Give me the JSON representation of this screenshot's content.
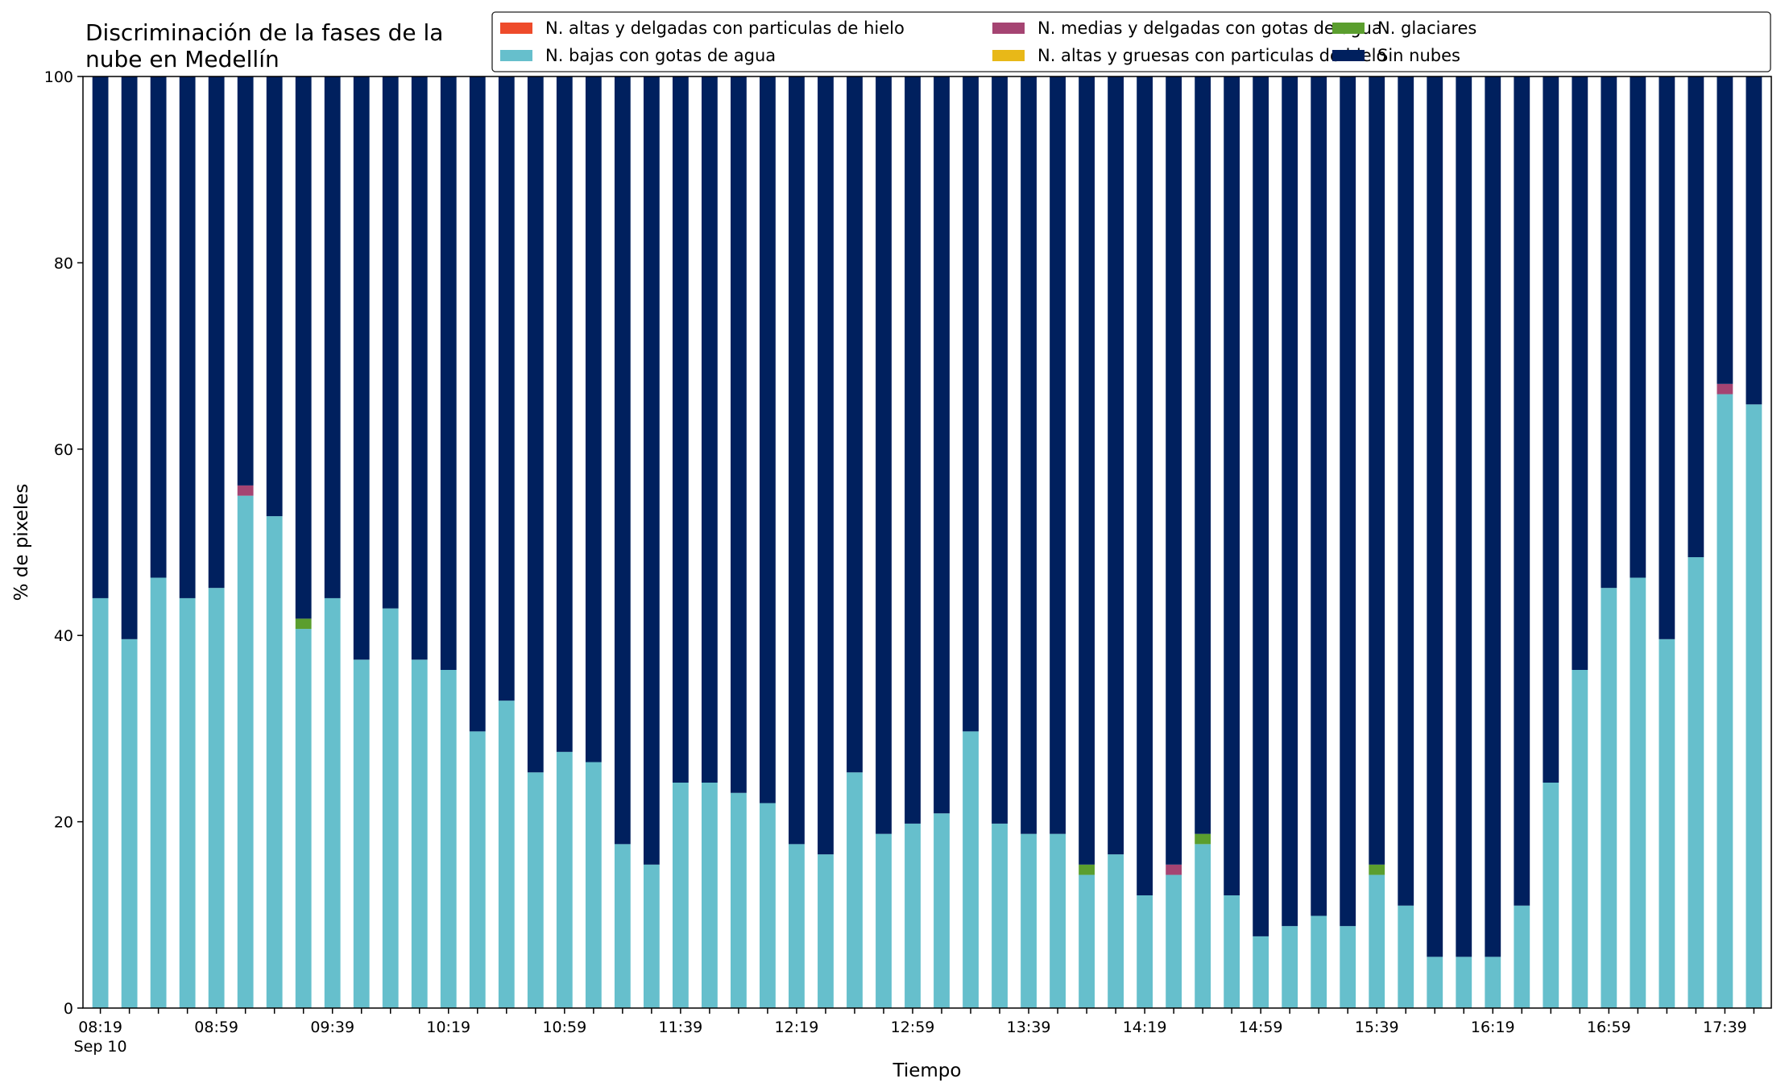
{
  "chart_data": {
    "type": "bar",
    "stacked": true,
    "title_lines": [
      "Discriminación de la fases de la",
      "nube en Medellín"
    ],
    "xlabel": "Tiempo",
    "ylabel": "% de pixeles",
    "ylim": [
      0,
      100
    ],
    "yticks": [
      0,
      20,
      40,
      60,
      80,
      100
    ],
    "grid": false,
    "legend_position": "top-right",
    "x_tick_labels": [
      {
        "index": 0,
        "label": "08:19",
        "sub": "Sep 10"
      },
      {
        "index": 4,
        "label": "08:59"
      },
      {
        "index": 8,
        "label": "09:39"
      },
      {
        "index": 12,
        "label": "10:19"
      },
      {
        "index": 16,
        "label": "10:59"
      },
      {
        "index": 20,
        "label": "11:39"
      },
      {
        "index": 24,
        "label": "12:19"
      },
      {
        "index": 28,
        "label": "12:59"
      },
      {
        "index": 32,
        "label": "13:39"
      },
      {
        "index": 36,
        "label": "14:19"
      },
      {
        "index": 40,
        "label": "14:59"
      },
      {
        "index": 44,
        "label": "15:39"
      },
      {
        "index": 48,
        "label": "16:19"
      },
      {
        "index": 52,
        "label": "16:59"
      },
      {
        "index": 56,
        "label": "17:39"
      }
    ],
    "series": [
      {
        "name": "N. altas y delgadas con particulas de hielo",
        "color": "#ee4b2b",
        "values": [
          0,
          0,
          0,
          0,
          0,
          0,
          0,
          0,
          0,
          0,
          0,
          0,
          0,
          0,
          0,
          0,
          0,
          0,
          0,
          0,
          0,
          0,
          0,
          0,
          0,
          0,
          0,
          0,
          0,
          0,
          0,
          0,
          0,
          0,
          0,
          0,
          0,
          0,
          0,
          0,
          0,
          0,
          0,
          0,
          0,
          0,
          0,
          0,
          0,
          0,
          0,
          0,
          0,
          0,
          0,
          0,
          0,
          0
        ]
      },
      {
        "name": "N. altas y gruesas con particulas de hielo",
        "color": "#e8b818",
        "values": [
          0,
          0,
          0,
          0,
          0,
          0,
          0,
          0,
          0,
          0,
          0,
          0,
          0,
          0,
          0,
          0,
          0,
          0,
          0,
          0,
          0,
          0,
          0,
          0,
          0,
          0,
          0,
          0,
          0,
          0,
          0,
          0,
          0,
          0,
          0,
          0,
          0,
          0,
          0,
          0,
          0,
          0,
          0,
          0,
          0,
          0,
          0,
          0,
          0,
          0,
          0,
          0,
          0,
          0,
          0,
          0,
          0,
          0
        ]
      },
      {
        "name": "N. bajas con gotas de agua",
        "color": "#66bfcc",
        "values": [
          44,
          39.6,
          46.2,
          44,
          45.1,
          55,
          52.8,
          40.7,
          44,
          37.4,
          42.9,
          37.4,
          36.3,
          29.7,
          33,
          25.3,
          27.5,
          26.4,
          17.6,
          15.4,
          24.2,
          24.2,
          23.1,
          22,
          17.6,
          16.5,
          25.3,
          18.7,
          19.8,
          20.9,
          29.7,
          19.8,
          18.7,
          18.7,
          14.3,
          16.5,
          12.1,
          14.3,
          17.6,
          12.1,
          7.7,
          8.8,
          9.9,
          8.8,
          14.3,
          11,
          5.5,
          5.5,
          5.5,
          11,
          24.2,
          36.3,
          45.1,
          46.2,
          39.6,
          48.4,
          65.9,
          64.8
        ]
      },
      {
        "name": "N. glaciares",
        "color": "#5b9e2e",
        "values": [
          0,
          0,
          0,
          0,
          0,
          0,
          0,
          1.1,
          0,
          0,
          0,
          0,
          0,
          0,
          0,
          0,
          0,
          0,
          0,
          0,
          0,
          0,
          0,
          0,
          0,
          0,
          0,
          0,
          0,
          0,
          0,
          0,
          0,
          0,
          1.1,
          0,
          0,
          0,
          1.1,
          0,
          0,
          0,
          0,
          0,
          1.1,
          0,
          0,
          0,
          0,
          0,
          0,
          0,
          0,
          0,
          0,
          0,
          0,
          0
        ]
      },
      {
        "name": "N. medias y delgadas con gotas de agua",
        "color": "#a54472",
        "values": [
          0,
          0,
          0,
          0,
          0,
          1.1,
          0,
          0,
          0,
          0,
          0,
          0,
          0,
          0,
          0,
          0,
          0,
          0,
          0,
          0,
          0,
          0,
          0,
          0,
          0,
          0,
          0,
          0,
          0,
          0,
          0,
          0,
          0,
          0,
          0,
          0,
          0,
          1.1,
          0,
          0,
          0,
          0,
          0,
          0,
          0,
          0,
          0,
          0,
          0,
          0,
          0,
          0,
          0,
          0,
          0,
          0,
          1.1,
          0
        ]
      },
      {
        "name": "Sin nubes",
        "color": "#00205e",
        "values": [
          56,
          60.4,
          53.8,
          56,
          54.9,
          43.9,
          47.2,
          58.2,
          56,
          62.6,
          57.1,
          62.6,
          63.7,
          70.3,
          67,
          74.7,
          72.5,
          73.6,
          82.4,
          84.6,
          75.8,
          75.8,
          76.9,
          78,
          82.4,
          83.5,
          74.7,
          81.3,
          80.2,
          79.1,
          70.3,
          80.2,
          81.3,
          81.3,
          84.6,
          83.5,
          87.9,
          84.6,
          81.3,
          87.9,
          92.3,
          91.2,
          90.1,
          91.2,
          84.6,
          89,
          94.5,
          94.5,
          94.5,
          89,
          75.8,
          63.7,
          54.9,
          53.8,
          60.4,
          51.6,
          33,
          35.2
        ]
      }
    ],
    "legend_order": [
      0,
      2,
      4,
      1,
      3,
      5
    ]
  }
}
